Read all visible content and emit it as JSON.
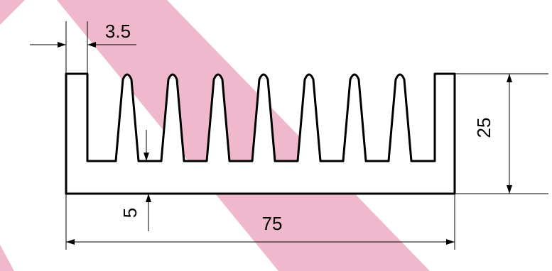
{
  "dimensions": {
    "fin_width": "3.5",
    "height": "25",
    "base_thickness": "5",
    "width": "75"
  }
}
